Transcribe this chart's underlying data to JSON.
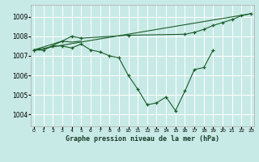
{
  "xlabel": "Graphe pression niveau de la mer (hPa)",
  "bg_color": "#c8eae6",
  "grid_color": "#ffffff",
  "line_color": "#1a5c2a",
  "xlabel_bg": "#4a8a6a",
  "xlabel_fg": "#ffffff",
  "ylim": [
    1003.4,
    1009.6
  ],
  "yticks": [
    1004,
    1005,
    1006,
    1007,
    1008,
    1009
  ],
  "xticks": [
    0,
    1,
    2,
    3,
    4,
    5,
    6,
    7,
    8,
    9,
    10,
    11,
    12,
    13,
    14,
    15,
    16,
    17,
    18,
    19,
    20,
    21,
    22,
    23
  ],
  "series_main": {
    "x": [
      0,
      1,
      2,
      3,
      4,
      5,
      6,
      7,
      8,
      9,
      10,
      11,
      12,
      13,
      14,
      15,
      16,
      17,
      18,
      19
    ],
    "y": [
      1007.3,
      1007.3,
      1007.5,
      1007.5,
      1007.4,
      1007.6,
      1007.3,
      1007.2,
      1007.0,
      1006.9,
      1006.0,
      1005.3,
      1004.5,
      1004.6,
      1004.9,
      1004.2,
      1005.2,
      1006.3,
      1006.4,
      1007.3
    ]
  },
  "series_upper1": {
    "x": [
      0,
      1,
      3,
      4,
      5
    ],
    "y": [
      1007.3,
      1007.3,
      1007.75,
      1007.7,
      1007.75
    ]
  },
  "series_upper2": {
    "x": [
      0,
      3,
      4,
      5,
      10,
      16,
      17,
      18,
      19,
      20,
      21,
      22,
      23
    ],
    "y": [
      1007.3,
      1007.75,
      1008.0,
      1007.9,
      1008.05,
      1008.1,
      1008.2,
      1008.35,
      1008.55,
      1008.7,
      1008.85,
      1009.05,
      1009.15
    ]
  },
  "series_trend": {
    "x": [
      0,
      23
    ],
    "y": [
      1007.3,
      1009.15
    ]
  }
}
